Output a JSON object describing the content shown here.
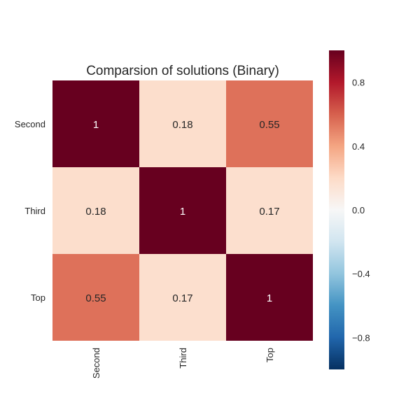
{
  "chart_data": {
    "type": "heatmap",
    "title": "Comparsion of solutions (Binary)",
    "rows": [
      "Second",
      "Third",
      "Top"
    ],
    "columns": [
      "Second",
      "Third",
      "Top"
    ],
    "values": [
      [
        1,
        0.18,
        0.55
      ],
      [
        0.18,
        1,
        0.17
      ],
      [
        0.55,
        0.17,
        1
      ]
    ],
    "cell_labels": [
      [
        "1",
        "0.18",
        "0.55"
      ],
      [
        "0.18",
        "1",
        "0.17"
      ],
      [
        "0.55",
        "0.17",
        "1"
      ]
    ],
    "colorbar": {
      "range": [
        -1,
        1
      ],
      "ticks": [
        0.8,
        0.4,
        0.0,
        -0.4,
        -0.8
      ],
      "tick_labels": [
        "0.8",
        "0.4",
        "0.0",
        "−0.4",
        "−0.8"
      ],
      "colormap": "RdBu_r"
    },
    "grid": false
  }
}
